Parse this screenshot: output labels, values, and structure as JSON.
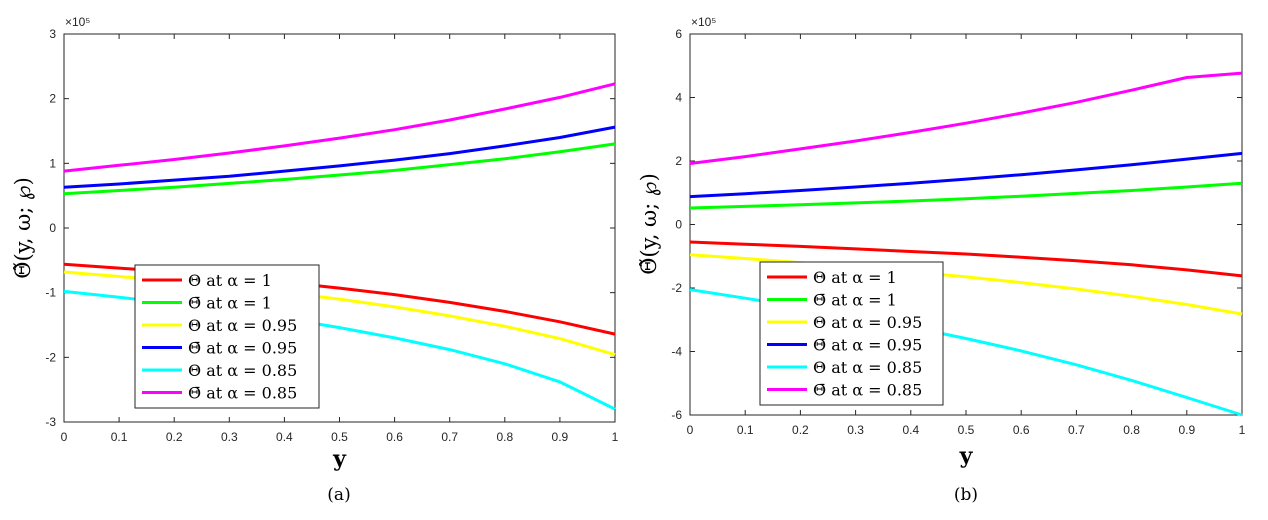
{
  "chart_data": [
    {
      "type": "line",
      "caption": "(a)",
      "xlabel": "y",
      "ylabel": "Θ̃(y, ω; ℘)",
      "exponent_label": "×10⁵",
      "xlim": [
        0,
        1
      ],
      "ylim": [
        -3,
        3
      ],
      "xticks": [
        0,
        0.1,
        0.2,
        0.3,
        0.4,
        0.5,
        0.6,
        0.7,
        0.8,
        0.9,
        1
      ],
      "yticks": [
        -3,
        -2,
        -1,
        0,
        1,
        2,
        3
      ],
      "x": [
        0,
        0.1,
        0.2,
        0.3,
        0.4,
        0.5,
        0.6,
        0.7,
        0.8,
        0.9,
        1
      ],
      "series": [
        {
          "name": "Θ at α = 1",
          "color": "#ff0000",
          "values": [
            -0.56,
            -0.62,
            -0.68,
            -0.76,
            -0.84,
            -0.93,
            -1.03,
            -1.15,
            -1.29,
            -1.45,
            -1.64
          ]
        },
        {
          "name": "Θ̄ at α = 1",
          "color": "#00ff00",
          "values": [
            0.53,
            0.58,
            0.63,
            0.69,
            0.75,
            0.82,
            0.89,
            0.98,
            1.07,
            1.18,
            1.3
          ]
        },
        {
          "name": "Θ at α = 0.95",
          "color": "#ffff00",
          "values": [
            -0.68,
            -0.75,
            -0.82,
            -0.9,
            -1.0,
            -1.1,
            -1.22,
            -1.36,
            -1.52,
            -1.71,
            -1.96
          ]
        },
        {
          "name": "Θ̄ at α = 0.95",
          "color": "#0000ff",
          "values": [
            0.63,
            0.68,
            0.74,
            0.8,
            0.88,
            0.96,
            1.05,
            1.15,
            1.27,
            1.4,
            1.56
          ]
        },
        {
          "name": "Θ at α = 0.85",
          "color": "#00ffff",
          "values": [
            -0.98,
            -1.07,
            -1.17,
            -1.28,
            -1.4,
            -1.54,
            -1.7,
            -1.88,
            -2.1,
            -2.38,
            -2.8
          ]
        },
        {
          "name": "Θ̄ at α = 0.85",
          "color": "#ff00ff",
          "values": [
            0.88,
            0.97,
            1.06,
            1.16,
            1.27,
            1.39,
            1.52,
            1.67,
            1.84,
            2.02,
            2.23
          ]
        }
      ],
      "legend_location": "bottom-left",
      "grid": false
    },
    {
      "type": "line",
      "caption": "(b)",
      "xlabel": "y",
      "ylabel": "Θ̃(y, ω; ℘)",
      "exponent_label": "×10⁵",
      "xlim": [
        0,
        1
      ],
      "ylim": [
        -6,
        6
      ],
      "xticks": [
        0,
        0.1,
        0.2,
        0.3,
        0.4,
        0.5,
        0.6,
        0.7,
        0.8,
        0.9,
        1
      ],
      "yticks": [
        -6,
        -4,
        -2,
        0,
        2,
        4,
        6
      ],
      "x": [
        0,
        0.1,
        0.2,
        0.3,
        0.4,
        0.5,
        0.6,
        0.7,
        0.8,
        0.9,
        1
      ],
      "series": [
        {
          "name": "Θ at α = 1",
          "color": "#ff0000",
          "values": [
            -0.55,
            -0.62,
            -0.69,
            -0.77,
            -0.85,
            -0.93,
            -1.03,
            -1.14,
            -1.27,
            -1.43,
            -1.62
          ]
        },
        {
          "name": "Θ̄ at α = 1",
          "color": "#00ff00",
          "values": [
            0.52,
            0.57,
            0.62,
            0.68,
            0.74,
            0.81,
            0.89,
            0.98,
            1.07,
            1.18,
            1.3
          ]
        },
        {
          "name": "Θ at α = 0.95",
          "color": "#ffff00",
          "values": [
            -0.95,
            -1.07,
            -1.2,
            -1.34,
            -1.49,
            -1.65,
            -1.83,
            -2.03,
            -2.26,
            -2.52,
            -2.82
          ]
        },
        {
          "name": "Θ̄ at α = 0.95",
          "color": "#0000ff",
          "values": [
            0.88,
            0.97,
            1.07,
            1.18,
            1.3,
            1.43,
            1.57,
            1.72,
            1.88,
            2.06,
            2.24
          ]
        },
        {
          "name": "Θ at α = 0.85",
          "color": "#00ffff",
          "values": [
            -2.05,
            -2.32,
            -2.6,
            -2.9,
            -3.23,
            -3.59,
            -3.98,
            -4.42,
            -4.91,
            -5.45,
            -6.0
          ]
        },
        {
          "name": "Θ̄ at α = 0.85",
          "color": "#ff00ff",
          "values": [
            1.92,
            2.14,
            2.38,
            2.63,
            2.9,
            3.19,
            3.51,
            3.85,
            4.23,
            4.63,
            4.77
          ]
        }
      ],
      "legend_location": "bottom-left",
      "grid": false
    }
  ]
}
